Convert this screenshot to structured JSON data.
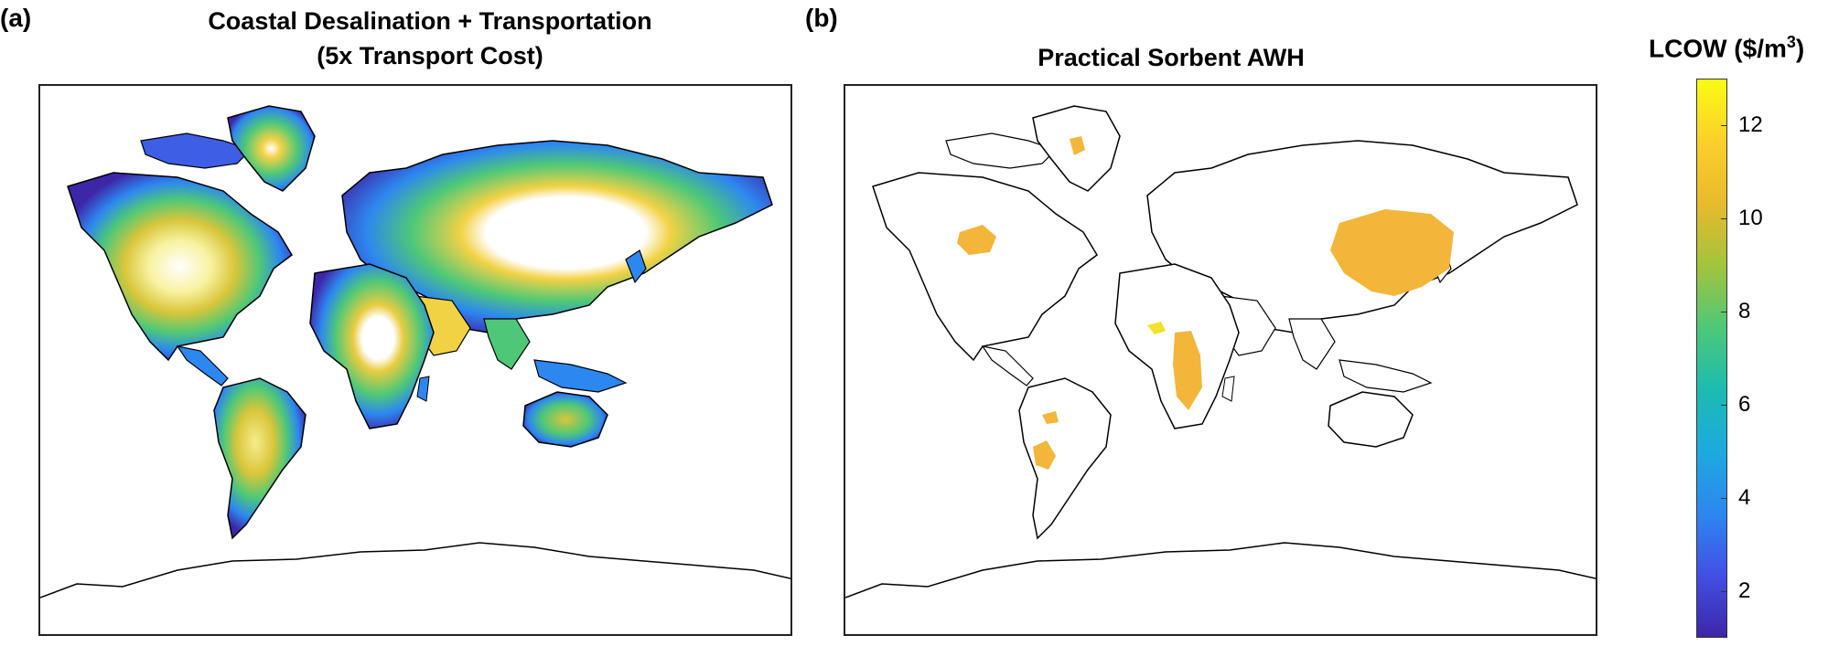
{
  "panel_a": {
    "letter": "(a)",
    "title_line1": "Coastal Desalination + Transportation",
    "title_line2": "(5x Transport Cost)"
  },
  "panel_b": {
    "letter": "(b)",
    "title": "Practical Sorbent AWH"
  },
  "colorbar": {
    "label_main": "LCOW ($/m",
    "label_sup": "3",
    "label_close": ")",
    "ticks": [
      "12",
      "10",
      "8",
      "6",
      "4",
      "2"
    ],
    "range": [
      1,
      13
    ],
    "colors": [
      "#3e26a8",
      "#4150e6",
      "#2d87f0",
      "#1caadf",
      "#1bbcb0",
      "#4ec878",
      "#a3c43c",
      "#e8ba2c",
      "#fbd02a",
      "#f9fb14"
    ]
  },
  "colors": {
    "coast_line": "#000000",
    "awh_fill": "#f3b63a",
    "awh_highlight": "#f6e02a"
  }
}
